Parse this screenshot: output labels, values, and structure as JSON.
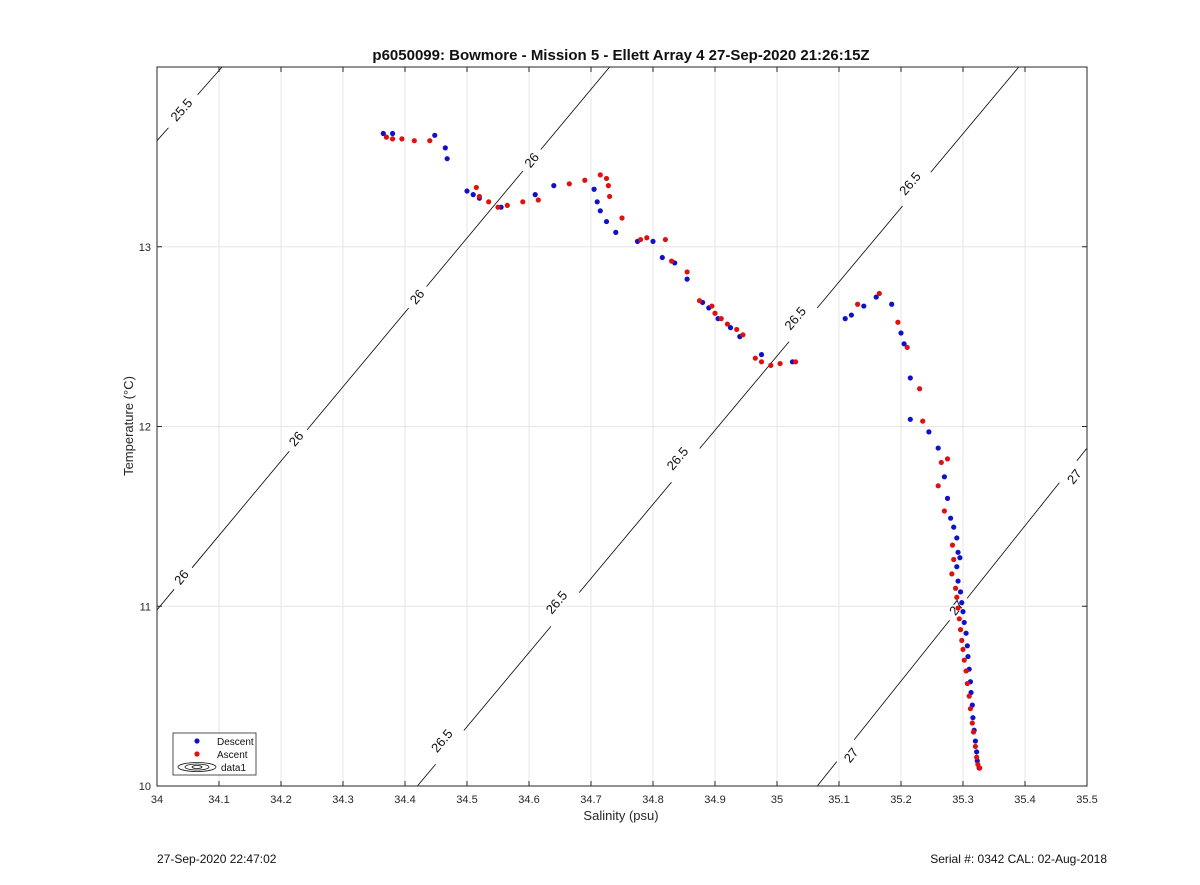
{
  "footer": {
    "timestamp": "27-Sep-2020 22:47:02",
    "serial": "Serial #: 0342  CAL: 02-Aug-2018"
  },
  "chart_data": {
    "type": "scatter",
    "title": "p6050099: Bowmore - Mission 5 - Ellett Array 4 27-Sep-2020 21:26:15Z",
    "xlabel": "Salinity (psu)",
    "ylabel": "Temperature (°C)",
    "xlim": [
      34,
      35.5
    ],
    "ylim": [
      10,
      14
    ],
    "x_ticks": [
      34,
      34.1,
      34.2,
      34.3,
      34.4,
      34.5,
      34.6,
      34.7,
      34.8,
      34.9,
      35,
      35.1,
      35.2,
      35.3,
      35.4,
      35.5
    ],
    "y_ticks": [
      10,
      11,
      12,
      13
    ],
    "grid": true,
    "legend": {
      "placement": "bottom-left",
      "entries": [
        "Descent",
        "Ascent",
        "data1"
      ]
    },
    "colors": {
      "descent": "#1010c8",
      "ascent": "#e01010",
      "contour": "#000000",
      "grid": "#e6e6e6"
    },
    "contours": [
      {
        "level": "25.5",
        "points": [
          [
            34,
            13.59
          ],
          [
            34.105,
            14
          ]
        ],
        "labels": [
          [
            34.04,
            13.76
          ]
        ]
      },
      {
        "level": "26",
        "points": [
          [
            34,
            10.98
          ],
          [
            34.73,
            14
          ]
        ],
        "labels": [
          [
            34.04,
            11.16
          ],
          [
            34.225,
            11.93
          ],
          [
            34.42,
            12.72
          ],
          [
            34.605,
            13.48
          ]
        ]
      },
      {
        "level": "26.5",
        "points": [
          [
            34.42,
            10
          ],
          [
            35.39,
            14
          ]
        ],
        "labels": [
          [
            34.46,
            10.25
          ],
          [
            34.645,
            11.02
          ],
          [
            34.84,
            11.82
          ],
          [
            35.03,
            12.6
          ],
          [
            35.215,
            13.35
          ]
        ]
      },
      {
        "level": "27",
        "points": [
          [
            35.065,
            10
          ],
          [
            35.5,
            11.88
          ]
        ],
        "labels": [
          [
            35.12,
            10.17
          ],
          [
            35.29,
            10.99
          ],
          [
            35.48,
            11.72
          ]
        ]
      }
    ],
    "series": [
      {
        "name": "Descent",
        "points": [
          [
            34.365,
            13.63
          ],
          [
            34.38,
            13.63
          ],
          [
            34.448,
            13.62
          ],
          [
            34.465,
            13.55
          ],
          [
            34.468,
            13.49
          ],
          [
            34.5,
            13.31
          ],
          [
            34.51,
            13.29
          ],
          [
            34.52,
            13.27
          ],
          [
            34.555,
            13.22
          ],
          [
            34.61,
            13.29
          ],
          [
            34.64,
            13.34
          ],
          [
            34.705,
            13.32
          ],
          [
            34.71,
            13.25
          ],
          [
            34.715,
            13.2
          ],
          [
            34.725,
            13.14
          ],
          [
            34.74,
            13.08
          ],
          [
            34.775,
            13.03
          ],
          [
            34.8,
            13.03
          ],
          [
            34.815,
            12.94
          ],
          [
            34.835,
            12.91
          ],
          [
            34.855,
            12.82
          ],
          [
            34.88,
            12.69
          ],
          [
            34.89,
            12.66
          ],
          [
            34.905,
            12.6
          ],
          [
            34.925,
            12.55
          ],
          [
            34.94,
            12.5
          ],
          [
            34.975,
            12.4
          ],
          [
            35.025,
            12.36
          ],
          [
            35.11,
            12.6
          ],
          [
            35.12,
            12.62
          ],
          [
            35.14,
            12.67
          ],
          [
            35.16,
            12.72
          ],
          [
            35.185,
            12.68
          ],
          [
            35.2,
            12.52
          ],
          [
            35.205,
            12.46
          ],
          [
            35.215,
            12.27
          ],
          [
            35.215,
            12.04
          ],
          [
            35.245,
            11.97
          ],
          [
            35.26,
            11.88
          ],
          [
            35.27,
            11.72
          ],
          [
            35.275,
            11.6
          ],
          [
            35.28,
            11.49
          ],
          [
            35.285,
            11.44
          ],
          [
            35.29,
            11.38
          ],
          [
            35.292,
            11.3
          ],
          [
            35.295,
            11.27
          ],
          [
            35.29,
            11.22
          ],
          [
            35.292,
            11.14
          ],
          [
            35.296,
            11.08
          ],
          [
            35.298,
            11.02
          ],
          [
            35.3,
            10.97
          ],
          [
            35.302,
            10.91
          ],
          [
            35.305,
            10.85
          ],
          [
            35.307,
            10.78
          ],
          [
            35.308,
            10.72
          ],
          [
            35.31,
            10.65
          ],
          [
            35.312,
            10.58
          ],
          [
            35.313,
            10.52
          ],
          [
            35.315,
            10.45
          ],
          [
            35.316,
            10.38
          ],
          [
            35.318,
            10.31
          ],
          [
            35.32,
            10.25
          ],
          [
            35.322,
            10.19
          ],
          [
            35.323,
            10.14
          ],
          [
            35.326,
            10.1
          ]
        ]
      },
      {
        "name": "Ascent",
        "points": [
          [
            34.37,
            13.61
          ],
          [
            34.38,
            13.6
          ],
          [
            34.395,
            13.6
          ],
          [
            34.415,
            13.59
          ],
          [
            34.44,
            13.59
          ],
          [
            34.515,
            13.33
          ],
          [
            34.52,
            13.28
          ],
          [
            34.535,
            13.25
          ],
          [
            34.55,
            13.22
          ],
          [
            34.565,
            13.23
          ],
          [
            34.59,
            13.25
          ],
          [
            34.615,
            13.26
          ],
          [
            34.665,
            13.35
          ],
          [
            34.69,
            13.37
          ],
          [
            34.715,
            13.4
          ],
          [
            34.725,
            13.38
          ],
          [
            34.728,
            13.34
          ],
          [
            34.73,
            13.28
          ],
          [
            34.75,
            13.16
          ],
          [
            34.78,
            13.04
          ],
          [
            34.79,
            13.05
          ],
          [
            34.82,
            13.04
          ],
          [
            34.83,
            12.92
          ],
          [
            34.855,
            12.86
          ],
          [
            34.875,
            12.7
          ],
          [
            34.895,
            12.67
          ],
          [
            34.9,
            12.63
          ],
          [
            34.91,
            12.6
          ],
          [
            34.92,
            12.57
          ],
          [
            34.935,
            12.54
          ],
          [
            34.945,
            12.51
          ],
          [
            34.965,
            12.38
          ],
          [
            34.975,
            12.36
          ],
          [
            34.99,
            12.34
          ],
          [
            35.005,
            12.35
          ],
          [
            35.03,
            12.36
          ],
          [
            35.13,
            12.68
          ],
          [
            35.165,
            12.74
          ],
          [
            35.195,
            12.58
          ],
          [
            35.21,
            12.44
          ],
          [
            35.23,
            12.21
          ],
          [
            35.235,
            12.03
          ],
          [
            35.265,
            11.8
          ],
          [
            35.26,
            11.67
          ],
          [
            35.275,
            11.82
          ],
          [
            35.27,
            11.53
          ],
          [
            35.283,
            11.34
          ],
          [
            35.285,
            11.26
          ],
          [
            35.282,
            11.18
          ],
          [
            35.288,
            11.1
          ],
          [
            35.29,
            11.05
          ],
          [
            35.292,
            10.99
          ],
          [
            35.294,
            10.93
          ],
          [
            35.296,
            10.87
          ],
          [
            35.298,
            10.81
          ],
          [
            35.3,
            10.76
          ],
          [
            35.302,
            10.7
          ],
          [
            35.305,
            10.64
          ],
          [
            35.307,
            10.57
          ],
          [
            35.31,
            10.5
          ],
          [
            35.312,
            10.43
          ],
          [
            35.315,
            10.35
          ],
          [
            35.317,
            10.3
          ],
          [
            35.32,
            10.22
          ],
          [
            35.322,
            10.16
          ],
          [
            35.324,
            10.12
          ],
          [
            35.327,
            10.1
          ]
        ]
      }
    ]
  }
}
